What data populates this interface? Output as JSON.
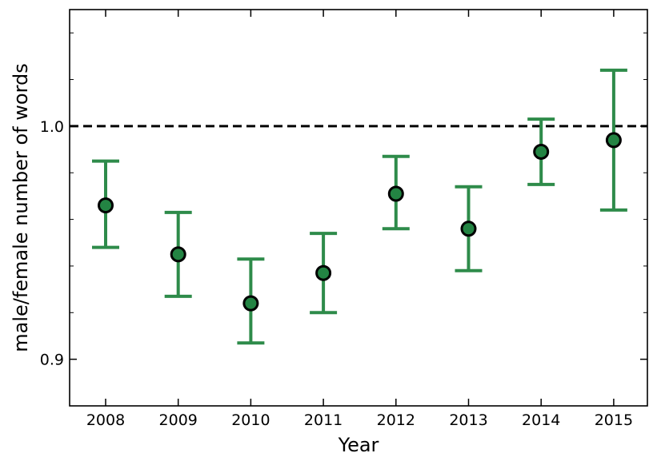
{
  "chart_data": {
    "type": "scatter",
    "xlabel": "Year",
    "ylabel": "male/female number of words",
    "categories": [
      "2008",
      "2009",
      "2010",
      "2011",
      "2012",
      "2013",
      "2014",
      "2015"
    ],
    "values": [
      0.966,
      0.945,
      0.924,
      0.937,
      0.971,
      0.956,
      0.989,
      0.994
    ],
    "error_low": [
      0.948,
      0.927,
      0.907,
      0.92,
      0.956,
      0.938,
      0.975,
      0.964
    ],
    "error_high": [
      0.985,
      0.963,
      0.943,
      0.954,
      0.987,
      0.974,
      1.003,
      1.024
    ],
    "reference_line": 1.0,
    "ylim": [
      0.88,
      1.05
    ],
    "yticks": [
      "0.9",
      "1.0"
    ],
    "grid": false,
    "colors": {
      "marker_fill": "#238443",
      "marker_edge": "#000000",
      "error_bar": "#2e8b4a",
      "reference": "#000000"
    }
  }
}
